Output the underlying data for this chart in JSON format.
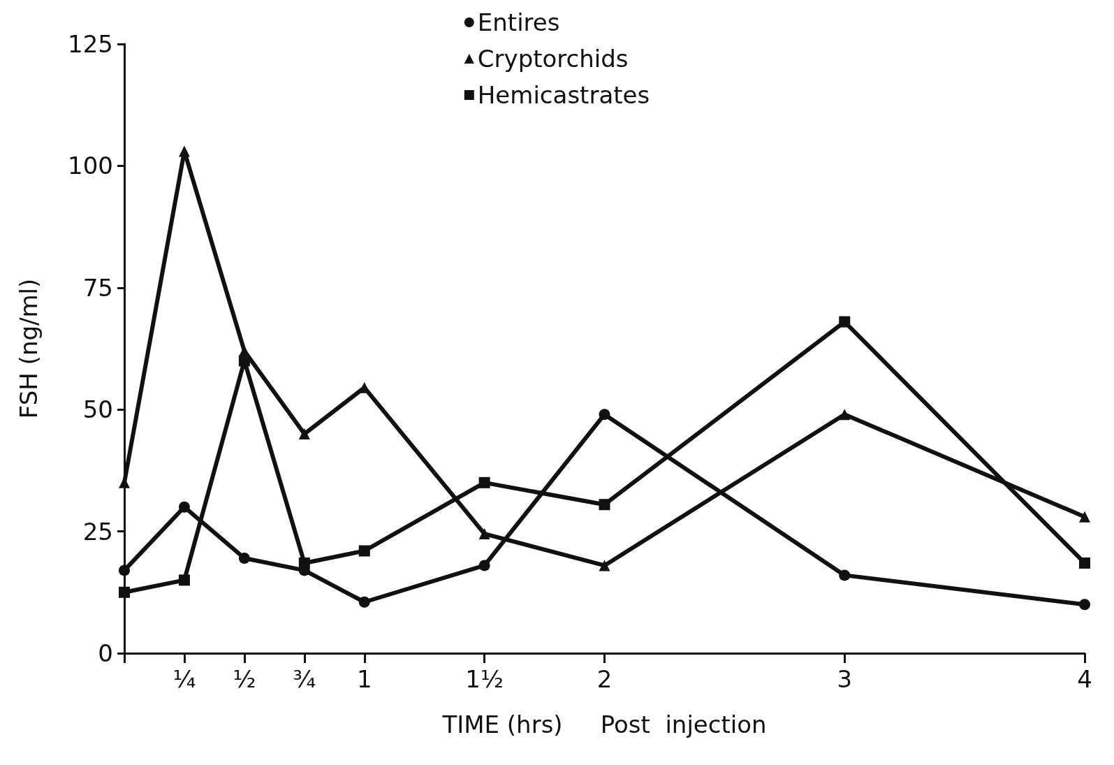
{
  "chart_data": {
    "type": "line",
    "xlabel": "TIME (hrs)     Post  injection",
    "ylabel": "FSH (ng/ml)",
    "x": [
      0,
      0.25,
      0.5,
      0.75,
      1,
      1.5,
      2,
      3,
      4
    ],
    "xlim": [
      0,
      4
    ],
    "xticks": [
      {
        "value": 0,
        "label": null
      },
      {
        "value": 0.25,
        "label": "¼"
      },
      {
        "value": 0.5,
        "label": "½"
      },
      {
        "value": 0.75,
        "label": "¾"
      },
      1,
      {
        "value": 1.5,
        "label": "1½"
      },
      2,
      3,
      4
    ],
    "ylim": [
      0,
      125
    ],
    "yticks": [
      0,
      25,
      50,
      75,
      100,
      125
    ],
    "series": [
      {
        "name": "Entires",
        "color": "#111111",
        "marker": "circle",
        "values": [
          17,
          30,
          19.5,
          17,
          10.5,
          18,
          49,
          16,
          10
        ]
      },
      {
        "name": "Cryptorchids",
        "color": "#111111",
        "marker": "triangle",
        "values": [
          35,
          103,
          62,
          45,
          54.5,
          24.5,
          18,
          49,
          28
        ]
      },
      {
        "name": "Hemicastrates",
        "color": "#111111",
        "marker": "square",
        "values": [
          12.5,
          15,
          60,
          18.5,
          21,
          35,
          30.5,
          68,
          18.5
        ]
      }
    ],
    "legend": "top",
    "grid": false,
    "line_style": "solid"
  }
}
